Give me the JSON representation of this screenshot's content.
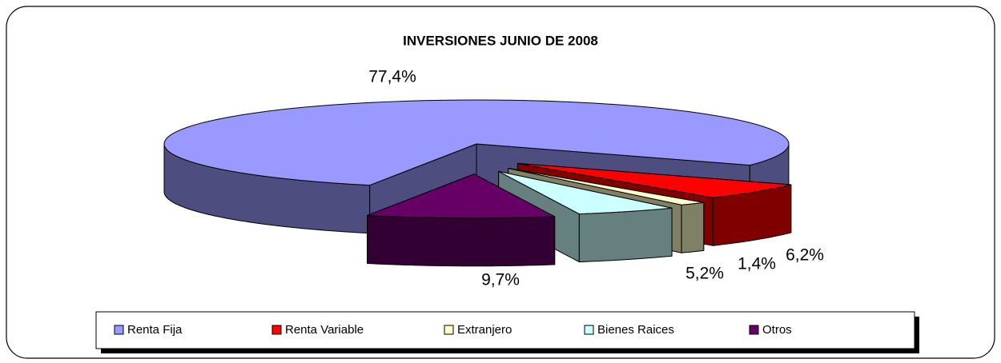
{
  "chart_data": {
    "type": "pie3d",
    "title": "INVERSIONES JUNIO DE 2008",
    "categories": [
      "Renta Fija",
      "Renta Variable",
      "Extranjero",
      "Bienes Raices",
      "Otros"
    ],
    "values": [
      77.4,
      6.2,
      1.4,
      5.2,
      9.7
    ],
    "value_labels": [
      "77,4%",
      "6,2%",
      "1,4%",
      "5,2%",
      "9,7%"
    ],
    "colors": [
      "#9999ff",
      "#ff0000",
      "#ffffcc",
      "#ccffff",
      "#660066"
    ],
    "legend": "bottom"
  }
}
